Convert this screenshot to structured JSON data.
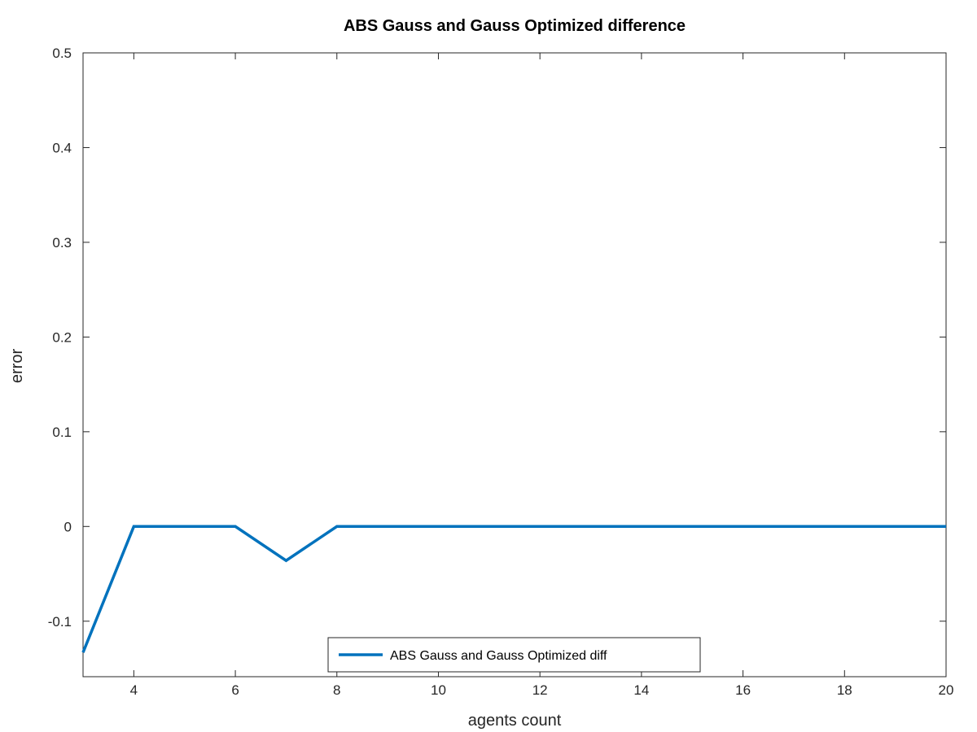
{
  "chart_data": {
    "type": "line",
    "title": "ABS Gauss and Gauss Optimized difference",
    "xlabel": "agents count",
    "ylabel": "error",
    "xlim": [
      3,
      20
    ],
    "ylim": [
      -0.1586,
      0.5
    ],
    "xticks": [
      4,
      6,
      8,
      10,
      12,
      14,
      16,
      18,
      20
    ],
    "yticks": [
      -0.1,
      0,
      0.1,
      0.2,
      0.3,
      0.4,
      0.5
    ],
    "ytick_labels": [
      "-0.1",
      "0",
      "0.1",
      "0.2",
      "0.3",
      "0.4",
      "0.5"
    ],
    "grid": false,
    "legend": {
      "location": "bottom-center",
      "entries": [
        "ABS Gauss and Gauss Optimized diff"
      ]
    },
    "series": [
      {
        "name": "ABS Gauss and Gauss Optimized diff",
        "color": "#0072BD",
        "x": [
          3,
          4,
          5,
          6,
          7,
          8,
          9,
          10,
          11,
          12,
          13,
          14,
          15,
          16,
          17,
          18,
          19,
          20
        ],
        "y": [
          -0.133,
          0,
          0,
          0,
          -0.036,
          0,
          0,
          0,
          0,
          0,
          0,
          0,
          0,
          0,
          0,
          0,
          0,
          0
        ]
      }
    ]
  }
}
